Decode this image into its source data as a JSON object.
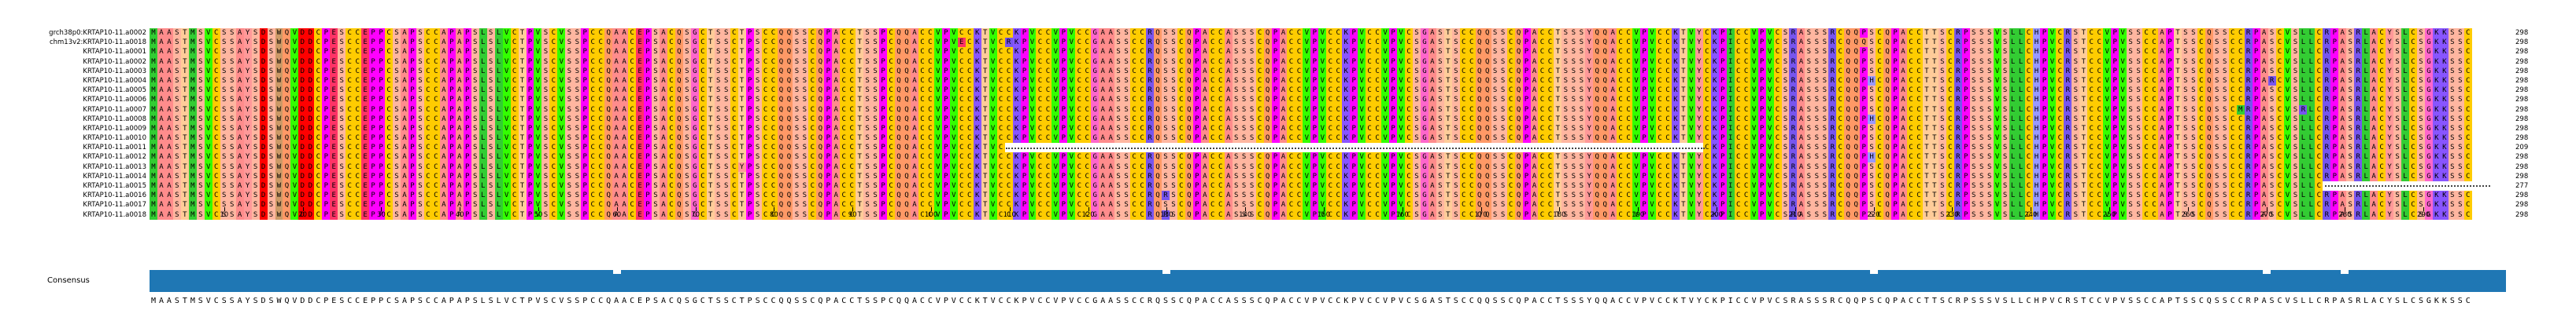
{
  "alignment": {
    "names": [
      "grch38p0:KRTAP10-11.a0002",
      "chm13v2:KRTAP10-11.a0018",
      "KRTAP10-11.a0001",
      "KRTAP10-11.a0002",
      "KRTAP10-11.a0003",
      "KRTAP10-11.a0004",
      "KRTAP10-11.a0005",
      "KRTAP10-11.a0006",
      "KRTAP10-11.a0007",
      "KRTAP10-11.a0008",
      "KRTAP10-11.a0009",
      "KRTAP10-11.a0010",
      "KRTAP10-11.a0011",
      "KRTAP10-11.a0012",
      "KRTAP10-11.a0013",
      "KRTAP10-11.a0014",
      "KRTAP10-11.a0015",
      "KRTAP10-11.a0016",
      "KRTAP10-11.a0017",
      "KRTAP10-11.a0018"
    ],
    "counts": [
      "298",
      "298",
      "298",
      "298",
      "298",
      "298",
      "298",
      "298",
      "298",
      "298",
      "298",
      "298",
      "209",
      "298",
      "298",
      "298",
      "277",
      "298",
      "298",
      "298"
    ],
    "consensus_label": "Consensus",
    "consensus": "MAASTMSVCSSAYSDSWQVDDCPESCCEPPCSAPSCCAPAPSLSLVCTPVSCVSSPCCQAACEPSACQSGCTSSCTPSCCQQSSCQPACCTSSPCQQACCVPVCCKTVCCKPVCCVPVCCGAASSCCRQSSCQPACCASSSCQPACCVPVCCKPVCCVPVCSGASTSCCQQSSCQPACCTSSSYQQACCVPVCCKTVYCKPICCVPVCSRASSSRCQQPSCQPACCTTSCRPSSSVSLLCHPVCRSTCCVPVSSCCAPTSSCQSSCCRPASCVSLLCRPASRLACYSLCSGKKSSC",
    "ticks": [
      "10",
      "20",
      "30",
      "40",
      "50",
      "60",
      "70",
      "80",
      "90",
      "100",
      "110",
      "120",
      "130",
      "140",
      "150",
      "160",
      "170",
      "180",
      "190",
      "200",
      "210",
      "220",
      "230",
      "240",
      "250",
      "260",
      "270",
      "280",
      "290"
    ],
    "gaps": [
      {
        "row": 12,
        "start": 110,
        "end": 198
      },
      {
        "row": 16,
        "start": 278,
        "end": 298
      }
    ],
    "variants": [
      {
        "row": 1,
        "pos": 110,
        "aa": "R"
      },
      {
        "row": 1,
        "pos": 104,
        "aa": "E"
      },
      {
        "row": 1,
        "pos": 219,
        "aa": "Q"
      },
      {
        "row": 5,
        "pos": 220,
        "aa": "H"
      },
      {
        "row": 5,
        "pos": 271,
        "aa": "R"
      },
      {
        "row": 8,
        "pos": 30,
        "aa": "P"
      },
      {
        "row": 9,
        "pos": 220,
        "aa": "H"
      },
      {
        "row": 8,
        "pos": 267,
        "aa": "M"
      },
      {
        "row": 8,
        "pos": 275,
        "aa": "R"
      },
      {
        "row": 10,
        "pos": 30,
        "aa": "P"
      },
      {
        "row": 13,
        "pos": 220,
        "aa": "H"
      },
      {
        "row": 14,
        "pos": 76,
        "aa": "Y"
      },
      {
        "row": 17,
        "pos": 130,
        "aa": "R"
      },
      {
        "row": 19,
        "pos": 130,
        "aa": "R"
      }
    ],
    "aa_colors": {
      "A": "#ff8c8c",
      "C": "#ffcc00",
      "D": "#ff0000",
      "E": "#ff3366",
      "F": "#66ccff",
      "G": "#ff66cc",
      "H": "#9999ff",
      "I": "#33cc33",
      "K": "#8855ff",
      "L": "#33cc33",
      "M": "#33cc33",
      "N": "#ffaaaa",
      "P": "#ff00ff",
      "Q": "#ff9966",
      "R": "#7755ee",
      "S": "#ffb6a0",
      "T": "#ffcc99",
      "V": "#33ff00",
      "W": "#cc9966",
      "Y": "#ff9999"
    },
    "consensus_bar_color": "#1f77b4"
  }
}
